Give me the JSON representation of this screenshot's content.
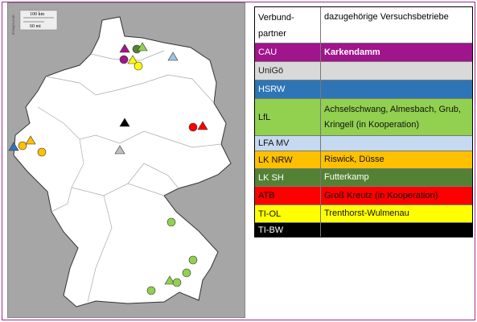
{
  "map": {
    "scale_km": "100 km",
    "scale_mi": "60 mi",
    "credit": "d-maps.com"
  },
  "table": {
    "header": [
      "Verbund-partner",
      "dazugehörige Versuchsbetriebe"
    ],
    "rows": [
      {
        "partner": "CAU",
        "farms": "Karkendamm"
      },
      {
        "partner": "UniGö"
      },
      {
        "partner": "HSRW"
      },
      {
        "partner": "LfL",
        "farms": "Achselschwang, Almesbach, Grub, Kringell (in Kooperation)"
      },
      {
        "partner": "LFA MV"
      },
      {
        "partner": "LK NRW",
        "farms": "Riswick, Düsse"
      },
      {
        "partner": "LK SH",
        "farms": "Futterkamp"
      },
      {
        "partner": "ATB",
        "farms": "Groß Kreutz (in Kooperation)"
      },
      {
        "partner": "TI-OL",
        "farms": "Trenthorst-Wulmenau"
      },
      {
        "partner": "TI-BW"
      }
    ]
  }
}
